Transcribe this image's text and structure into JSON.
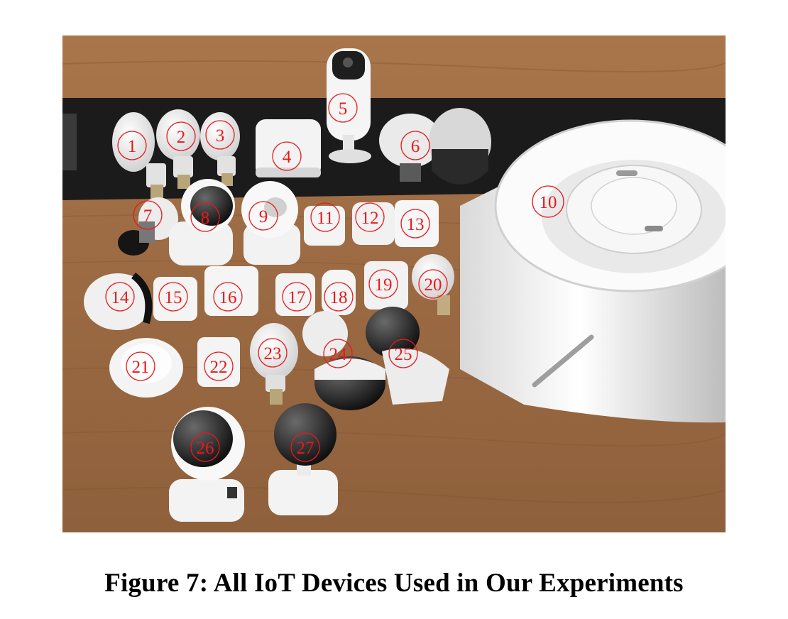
{
  "figure": {
    "caption": "Figure 7: All IoT Devices Used in Our Experiments"
  },
  "photo": {
    "labels": [
      "1",
      "2",
      "3",
      "4",
      "5",
      "6",
      "7",
      "8",
      "9",
      "10",
      "11",
      "12",
      "13",
      "14",
      "15",
      "16",
      "17",
      "18",
      "19",
      "20",
      "21",
      "22",
      "23",
      "24",
      "25",
      "26",
      "27"
    ]
  }
}
